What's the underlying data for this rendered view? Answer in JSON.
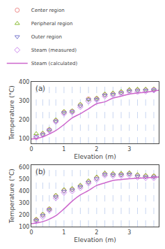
{
  "chart_data": [
    {
      "type": "scatter",
      "title": "(a)",
      "xlabel": "Elevation (m)",
      "ylabel": "Temperature (°C)",
      "xlim": [
        0,
        3.9
      ],
      "ylim": [
        75,
        400
      ],
      "xticks": [
        0,
        1,
        2,
        3
      ],
      "yticks": [
        100,
        200,
        300,
        400
      ],
      "grid": false,
      "legend": "top",
      "series": [
        {
          "type": "vline",
          "color": "#bbccee",
          "line_style": "dashed",
          "x": [
            0.15,
            0.35,
            0.55,
            0.75,
            1.0,
            1.25,
            1.5,
            1.75,
            2.0,
            2.25,
            2.5,
            2.75,
            3.0,
            3.25,
            3.5,
            3.75
          ]
        },
        {
          "name": "Center region",
          "type": "scatter",
          "marker": "circle-open",
          "color": "#ee8888",
          "x": [
            0.15,
            0.35,
            0.55,
            0.75,
            1.0,
            1.25,
            1.5,
            1.75,
            2.0,
            2.25,
            2.5,
            2.75,
            3.0,
            3.25,
            3.5,
            3.75
          ],
          "values": [
            107,
            125,
            147,
            195,
            240,
            245,
            278,
            310,
            312,
            332,
            337,
            345,
            355,
            357,
            358,
            360
          ]
        },
        {
          "name": "Peripheral region",
          "type": "scatter",
          "marker": "triangle-up-open",
          "color": "#88bb33",
          "x": [
            0.15,
            0.35,
            0.55,
            0.75,
            1.0,
            1.25,
            1.5,
            1.75,
            2.0,
            2.25,
            2.5,
            2.75,
            3.0,
            3.25,
            3.5,
            3.75
          ],
          "values": [
            127,
            130,
            150,
            200,
            244,
            248,
            282,
            308,
            315,
            337,
            342,
            350,
            360,
            362,
            362,
            363
          ]
        },
        {
          "name": "Outer region",
          "type": "scatter",
          "marker": "triangle-down-open",
          "color": "#7777cc",
          "x": [
            0.15,
            0.35,
            0.55,
            0.75,
            1.0,
            1.25,
            1.5,
            1.75,
            2.0,
            2.25,
            2.5,
            2.75,
            3.0,
            3.25,
            3.5,
            3.75
          ],
          "values": [
            109,
            122,
            145,
            192,
            237,
            243,
            273,
            306,
            308,
            330,
            334,
            342,
            352,
            354,
            355,
            358
          ]
        },
        {
          "name": "Steam (measured)",
          "type": "scatter",
          "marker": "diamond-open",
          "color": "#cc88ee",
          "x": [
            0.15,
            0.35,
            0.55,
            0.75,
            1.0,
            1.25,
            1.5,
            1.75,
            2.0,
            2.25,
            2.5,
            2.75,
            3.0,
            3.25,
            3.5,
            3.75
          ],
          "values": [
            107,
            120,
            143,
            190,
            233,
            240,
            268,
            298,
            305,
            325,
            330,
            338,
            348,
            348,
            350,
            356
          ]
        },
        {
          "name": "Steam (calculated)",
          "type": "line",
          "line_style": "solid",
          "color": "#cc66cc",
          "x": [
            0.0,
            0.1,
            0.2,
            0.35,
            0.55,
            0.75,
            1.0,
            1.25,
            1.5,
            1.75,
            2.0,
            2.25,
            2.5,
            2.75,
            3.0,
            3.25,
            3.5,
            3.75,
            3.9
          ],
          "values": [
            98,
            100,
            103,
            110,
            125,
            143,
            175,
            210,
            232,
            258,
            285,
            295,
            315,
            325,
            336,
            342,
            345,
            352,
            356
          ]
        }
      ]
    },
    {
      "type": "scatter",
      "title": "(b)",
      "xlabel": "Elevation (m)",
      "ylabel": "Temperature (°C)",
      "xlim": [
        0,
        3.9
      ],
      "ylim": [
        100,
        620
      ],
      "xticks": [
        0,
        1,
        2,
        3
      ],
      "yticks": [
        100,
        200,
        300,
        400,
        500,
        600
      ],
      "grid": false,
      "legend": "top",
      "series": [
        {
          "type": "vline",
          "color": "#bbccee",
          "line_style": "dashed",
          "x": [
            0.15,
            0.35,
            0.55,
            0.75,
            1.0,
            1.25,
            1.5,
            1.75,
            2.0,
            2.25,
            2.5,
            2.75,
            3.0,
            3.25,
            3.5,
            3.75
          ]
        },
        {
          "name": "Center region",
          "type": "scatter",
          "marker": "circle-open",
          "color": "#ee8888",
          "x": [
            0.15,
            0.35,
            0.55,
            0.75,
            1.0,
            1.25,
            1.5,
            1.75,
            2.0,
            2.25,
            2.5,
            2.75,
            3.0,
            3.25,
            3.5,
            3.75
          ],
          "values": [
            158,
            200,
            248,
            358,
            405,
            415,
            442,
            480,
            512,
            545,
            542,
            542,
            548,
            532,
            527,
            525
          ]
        },
        {
          "name": "Peripheral region",
          "type": "scatter",
          "marker": "triangle-up-open",
          "color": "#88bb33",
          "x": [
            0.15,
            0.35,
            0.55,
            0.75,
            1.0,
            1.25,
            1.5,
            1.75,
            2.0,
            2.25,
            2.5,
            2.75,
            3.0,
            3.25,
            3.5,
            3.75
          ],
          "values": [
            163,
            205,
            252,
            365,
            413,
            422,
            450,
            488,
            520,
            553,
            550,
            550,
            555,
            540,
            533,
            530
          ]
        },
        {
          "name": "Outer region",
          "type": "scatter",
          "marker": "triangle-down-open",
          "color": "#7777cc",
          "x": [
            0.15,
            0.35,
            0.55,
            0.75,
            1.0,
            1.25,
            1.5,
            1.75,
            2.0,
            2.25,
            2.5,
            2.75,
            3.0,
            3.25,
            3.5,
            3.75
          ],
          "values": [
            153,
            193,
            242,
            352,
            398,
            410,
            437,
            474,
            504,
            540,
            537,
            537,
            543,
            527,
            520,
            518
          ]
        },
        {
          "name": "Steam (measured)",
          "type": "scatter",
          "marker": "diamond-open",
          "color": "#cc88ee",
          "x": [
            0.15,
            0.35,
            0.55,
            0.75,
            1.0,
            1.25,
            1.5,
            1.75,
            2.0,
            2.25,
            2.5,
            2.75,
            3.0,
            3.25,
            3.5,
            3.75
          ],
          "values": [
            148,
            183,
            237,
            342,
            388,
            400,
            428,
            467,
            498,
            533,
            530,
            530,
            535,
            517,
            512,
            510
          ]
        },
        {
          "name": "Steam (calculated)",
          "type": "line",
          "line_style": "solid",
          "color": "#cc66cc",
          "x": [
            0.0,
            0.1,
            0.2,
            0.35,
            0.55,
            0.75,
            1.0,
            1.25,
            1.5,
            1.75,
            2.0,
            2.25,
            2.5,
            2.75,
            3.0,
            3.25,
            3.5,
            3.75,
            3.9
          ],
          "values": [
            125,
            128,
            132,
            142,
            163,
            192,
            250,
            315,
            368,
            405,
            448,
            470,
            490,
            498,
            505,
            510,
            513,
            517,
            520
          ]
        }
      ]
    }
  ]
}
